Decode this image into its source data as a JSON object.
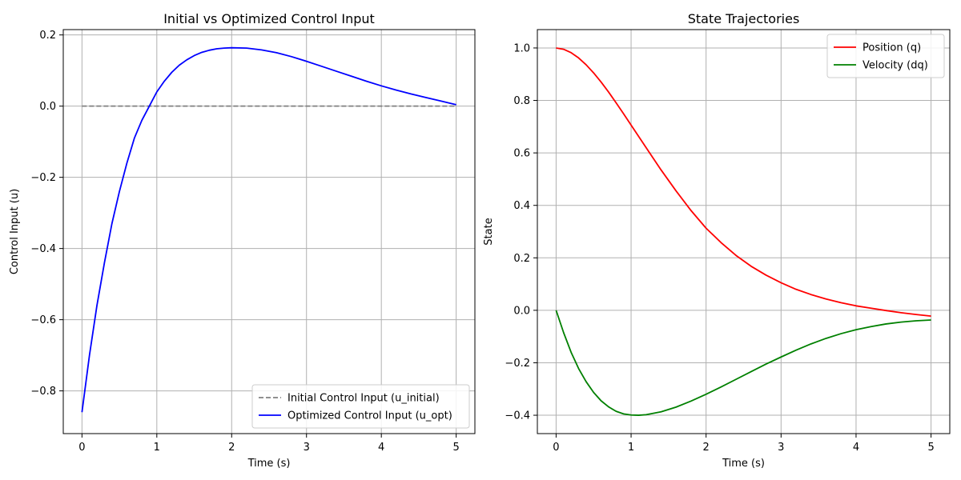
{
  "chart_data": [
    {
      "type": "line",
      "title": "Initial vs Optimized Control Input",
      "xlabel": "Time (s)",
      "ylabel": "Control Input (u)",
      "xlim": [
        -0.25,
        5.25
      ],
      "ylim": [
        -0.92,
        0.215
      ],
      "xticks": [
        0,
        1,
        2,
        3,
        4,
        5
      ],
      "xtick_labels": [
        "0",
        "1",
        "2",
        "3",
        "4",
        "5"
      ],
      "yticks": [
        -0.8,
        -0.6,
        -0.4,
        -0.2,
        0.0,
        0.2
      ],
      "ytick_labels": [
        "−0.8",
        "−0.6",
        "−0.4",
        "−0.2",
        "0.0",
        "0.2"
      ],
      "grid": true,
      "legend_position": "lower-right",
      "series": [
        {
          "name": "Initial Control Input (u_initial)",
          "color": "#808080",
          "dash": "dashed",
          "x": [
            0,
            5
          ],
          "y": [
            0.0,
            0.0
          ]
        },
        {
          "name": "Optimized Control Input (u_opt)",
          "color": "#0000ff",
          "dash": "solid",
          "x": [
            0,
            0.1,
            0.2,
            0.3,
            0.4,
            0.5,
            0.6,
            0.7,
            0.8,
            0.9,
            1.0,
            1.1,
            1.2,
            1.3,
            1.4,
            1.5,
            1.6,
            1.7,
            1.8,
            1.9,
            2.0,
            2.2,
            2.4,
            2.6,
            2.8,
            3.0,
            3.2,
            3.4,
            3.6,
            3.8,
            4.0,
            4.2,
            4.4,
            4.6,
            4.8,
            5.0
          ],
          "y": [
            -0.86,
            -0.7,
            -0.56,
            -0.44,
            -0.33,
            -0.24,
            -0.16,
            -0.09,
            -0.04,
            0.0,
            0.04,
            0.07,
            0.095,
            0.115,
            0.13,
            0.142,
            0.151,
            0.157,
            0.161,
            0.163,
            0.164,
            0.163,
            0.158,
            0.15,
            0.139,
            0.126,
            0.112,
            0.098,
            0.084,
            0.07,
            0.057,
            0.045,
            0.034,
            0.024,
            0.014,
            0.004
          ]
        }
      ]
    },
    {
      "type": "line",
      "title": "State Trajectories",
      "xlabel": "Time (s)",
      "ylabel": "State",
      "xlim": [
        -0.25,
        5.25
      ],
      "ylim": [
        -0.47,
        1.07
      ],
      "xticks": [
        0,
        1,
        2,
        3,
        4,
        5
      ],
      "xtick_labels": [
        "0",
        "1",
        "2",
        "3",
        "4",
        "5"
      ],
      "yticks": [
        -0.4,
        -0.2,
        0.0,
        0.2,
        0.4,
        0.6,
        0.8,
        1.0
      ],
      "ytick_labels": [
        "−0.4",
        "−0.2",
        "0.0",
        "0.2",
        "0.4",
        "0.6",
        "0.8",
        "1.0"
      ],
      "grid": true,
      "legend_position": "upper-right",
      "series": [
        {
          "name": "Position (q)",
          "color": "#ff0000",
          "dash": "solid",
          "x": [
            0,
            0.1,
            0.2,
            0.3,
            0.4,
            0.5,
            0.6,
            0.7,
            0.8,
            0.9,
            1.0,
            1.2,
            1.4,
            1.6,
            1.8,
            2.0,
            2.2,
            2.4,
            2.6,
            2.8,
            3.0,
            3.2,
            3.4,
            3.6,
            3.8,
            4.0,
            4.2,
            4.4,
            4.6,
            4.8,
            5.0
          ],
          "y": [
            1.0,
            0.995,
            0.982,
            0.962,
            0.936,
            0.905,
            0.87,
            0.832,
            0.791,
            0.749,
            0.706,
            0.62,
            0.535,
            0.455,
            0.38,
            0.313,
            0.258,
            0.209,
            0.168,
            0.134,
            0.105,
            0.08,
            0.06,
            0.043,
            0.029,
            0.017,
            0.008,
            -0.001,
            -0.009,
            -0.016,
            -0.022
          ]
        },
        {
          "name": "Velocity (dq)",
          "color": "#008000",
          "dash": "solid",
          "x": [
            0,
            0.1,
            0.2,
            0.3,
            0.4,
            0.5,
            0.6,
            0.7,
            0.8,
            0.9,
            1.0,
            1.1,
            1.2,
            1.4,
            1.6,
            1.8,
            2.0,
            2.2,
            2.4,
            2.6,
            2.8,
            3.0,
            3.2,
            3.4,
            3.6,
            3.8,
            4.0,
            4.2,
            4.4,
            4.6,
            4.8,
            5.0
          ],
          "y": [
            0.0,
            -0.085,
            -0.16,
            -0.222,
            -0.272,
            -0.313,
            -0.345,
            -0.368,
            -0.385,
            -0.395,
            -0.399,
            -0.4,
            -0.398,
            -0.387,
            -0.369,
            -0.346,
            -0.32,
            -0.292,
            -0.263,
            -0.234,
            -0.205,
            -0.178,
            -0.152,
            -0.128,
            -0.107,
            -0.089,
            -0.074,
            -0.062,
            -0.052,
            -0.045,
            -0.04,
            -0.037
          ]
        }
      ]
    }
  ]
}
